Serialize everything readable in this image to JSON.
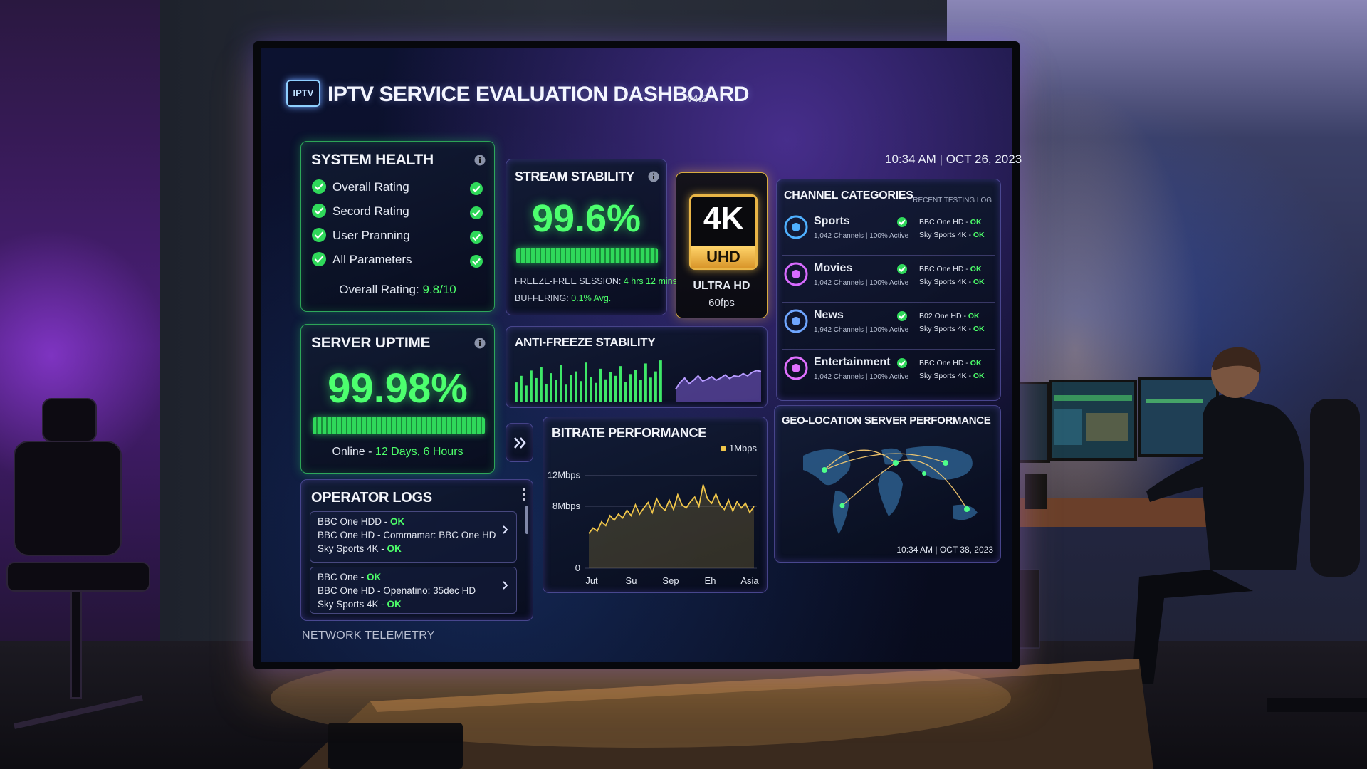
{
  "header": {
    "logo": "IPTV",
    "title": "IPTV SERVICE EVALUATION DASHBOARD",
    "version": "v4.2",
    "datetime": "10:34 AM | OCT 26, 2023"
  },
  "system_health": {
    "title": "SYSTEM HEALTH",
    "items": [
      "Overall Rating",
      "Secord Rating",
      "User Pranning",
      "All Parameters"
    ],
    "overall_label": "Overall Rating:",
    "overall_value": "9.8/10"
  },
  "stream_stability": {
    "title": "STREAM STABILITY",
    "value": "99.6%",
    "freeze_label": "FREEZE-FREE SESSION:",
    "freeze_value": "4 hrs 12 mins",
    "buffering_label": "BUFFERING:",
    "buffering_value": "0.1% Avg."
  },
  "uhd": {
    "badge_top": "4K",
    "badge_bottom": "UHD",
    "label": "ULTRA HD",
    "fps": "60fps"
  },
  "channel_categories": {
    "title": "CHANNEL CATEGORIES",
    "log_title": "RECENT TESTING LOG",
    "rows": [
      {
        "name": "Sports",
        "stats": "1,042 Channels | 100% Active",
        "log": [
          {
            "text": "BBC One HD - ",
            "status": "OK"
          },
          {
            "text": "Sky Sports 4K - ",
            "status": "OK"
          }
        ]
      },
      {
        "name": "Movies",
        "stats": "1,042 Channels | 100% Active",
        "log": [
          {
            "text": "BBC One HD - ",
            "status": "OK"
          },
          {
            "text": "Sky Sports 4K - ",
            "status": "OK"
          }
        ]
      },
      {
        "name": "News",
        "stats": "1,942 Channels | 100% Active",
        "log": [
          {
            "text": "B02 One HD - ",
            "status": "OK"
          },
          {
            "text": "Sky Sports 4K - ",
            "status": "OK"
          }
        ]
      },
      {
        "name": "Entertainment",
        "stats": "1,042 Channels | 100% Active",
        "log": [
          {
            "text": "BBC One HD - ",
            "status": "OK"
          },
          {
            "text": "Sky Sports 4K - ",
            "status": "OK"
          }
        ]
      }
    ]
  },
  "server_uptime": {
    "title": "SERVER UPTIME",
    "value": "99.98%",
    "online_label": "Online - ",
    "online_value": "12 Days, 6 Hours"
  },
  "anti_freeze": {
    "title": "ANTI-FREEZE STABILITY",
    "ylim": [
      0,
      100
    ],
    "bars": [
      45,
      60,
      38,
      72,
      55,
      80,
      42,
      66,
      50,
      85,
      40,
      62,
      70,
      48,
      90,
      58,
      44,
      76,
      52,
      68,
      60,
      82,
      46,
      64,
      74,
      50,
      88,
      56,
      70,
      95
    ],
    "wave": [
      30,
      45,
      55,
      42,
      50,
      60,
      48,
      52,
      58,
      50,
      55,
      62,
      54,
      60,
      58,
      65,
      60,
      68,
      72,
      70
    ]
  },
  "bitrate": {
    "title": "BITRATE PERFORMANCE",
    "legend": "1Mbps",
    "ylim": [
      0,
      14
    ],
    "yticks": [
      0,
      {
        "value": 8,
        "label": "8Mbps"
      },
      {
        "value": 12,
        "label": "12Mbps"
      }
    ],
    "categories": [
      "Jut",
      "Su",
      "Sep",
      "Eh",
      "Asia"
    ],
    "values": [
      4.5,
      5.2,
      4.8,
      6.0,
      5.5,
      6.8,
      6.2,
      7.0,
      6.5,
      7.5,
      6.8,
      8.2,
      7.0,
      7.8,
      8.5,
      7.2,
      9.0,
      8.0,
      7.5,
      8.8,
      7.6,
      9.5,
      8.2,
      7.8,
      8.6,
      9.2,
      8.0,
      10.8,
      9.0,
      8.4,
      9.6,
      8.2,
      7.6,
      8.8,
      7.4,
      8.6,
      7.8,
      8.4,
      7.2,
      8.0
    ]
  },
  "geo": {
    "title": "GEO-LOCATION SERVER PERFORMANCE",
    "timestamp": "10:34 AM | OCT 38, 2023"
  },
  "operator_logs": {
    "title": "OPERATOR LOGS",
    "entries": [
      [
        {
          "text": "BBC One HDD - ",
          "status": "OK"
        },
        {
          "text": "BBC One HD - Commamar: BBC One HD"
        },
        {
          "text": "Sky Sports 4K - ",
          "status": "OK"
        }
      ],
      [
        {
          "text": "BBC One - ",
          "status": "OK"
        },
        {
          "text": "BBC One HD - Openatino: 35dec HD"
        },
        {
          "text": "Sky Sports 4K - ",
          "status": "OK"
        }
      ]
    ]
  },
  "footer": "NETWORK TELEMETRY"
}
